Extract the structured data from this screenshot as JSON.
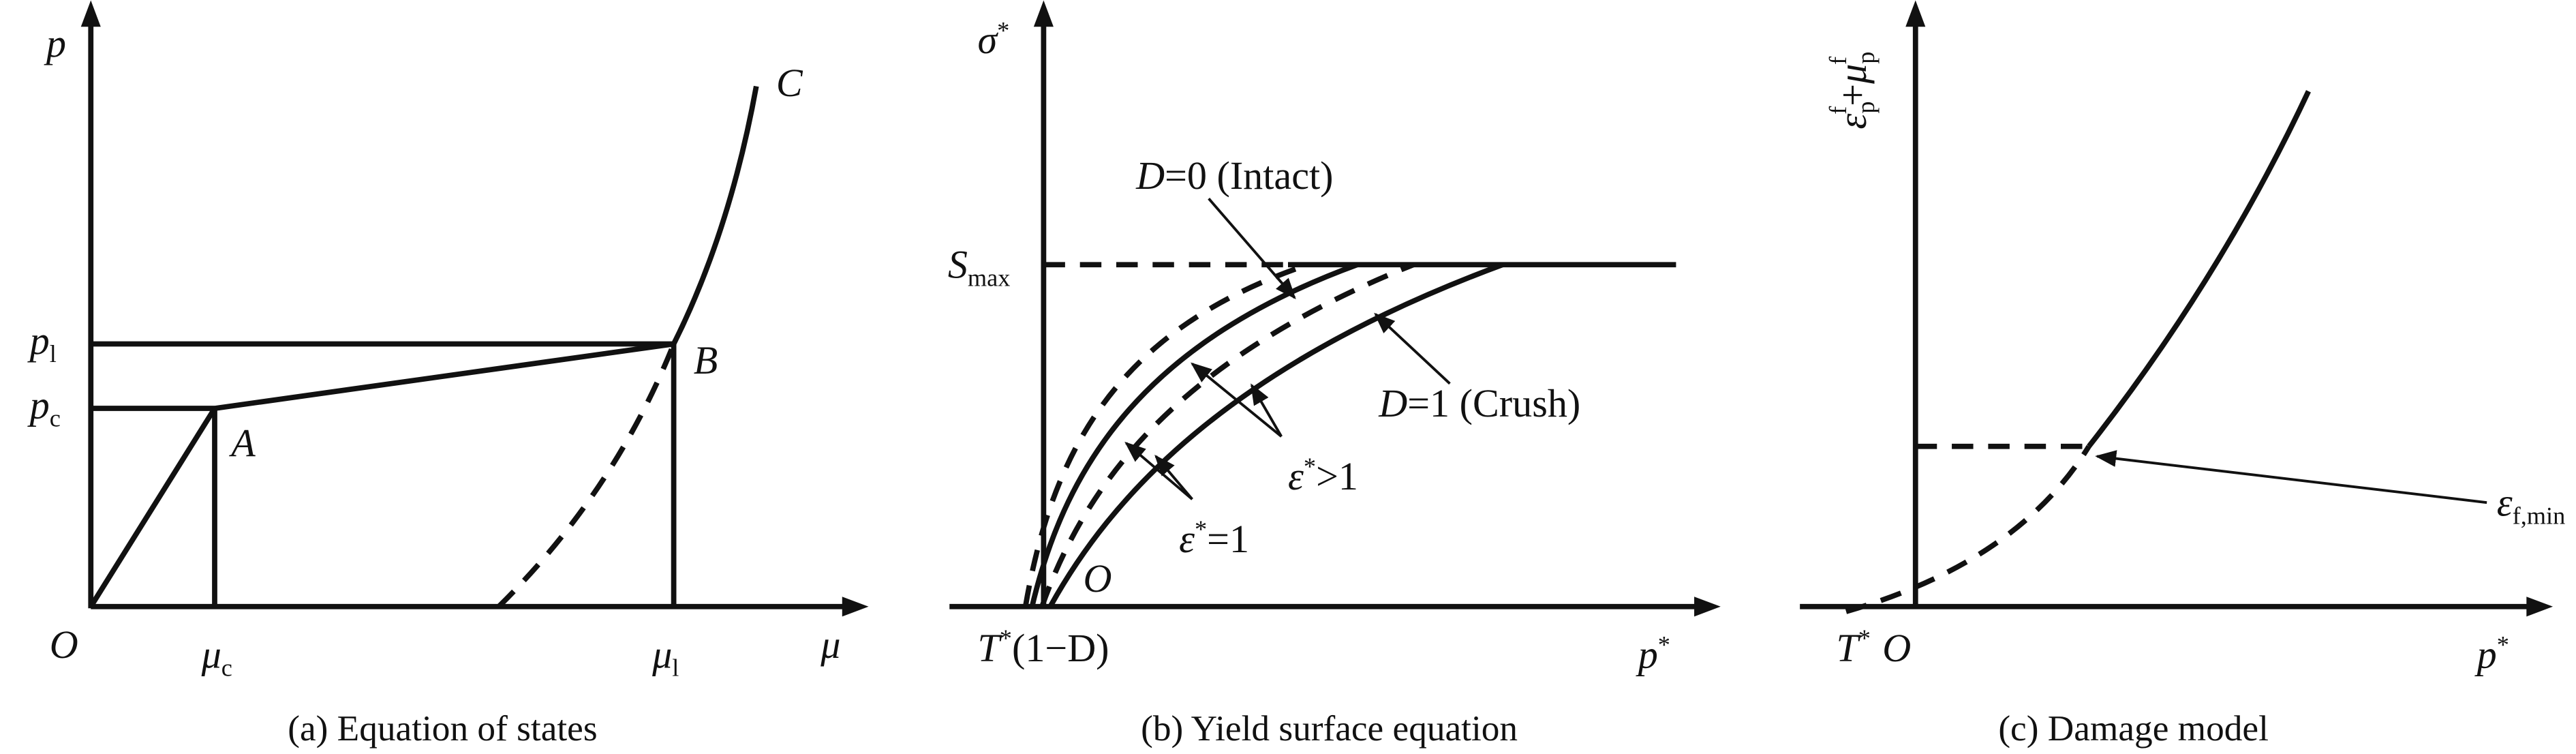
{
  "panels": [
    {
      "caption": "(a) Equation of states",
      "labels": {
        "y_axis": {
          "text": "p"
        },
        "origin": {
          "text": "O"
        },
        "mu_c": {
          "text": "μ",
          "sub": "c"
        },
        "mu_l": {
          "text": "μ",
          "sub": "l"
        },
        "x_axis": {
          "text": "μ"
        },
        "p_l": {
          "text": "p",
          "sub": "l"
        },
        "p_c": {
          "text": "p",
          "sub": "c"
        },
        "A": {
          "text": "A"
        },
        "B": {
          "text": "B"
        },
        "C": {
          "text": "C"
        }
      }
    },
    {
      "caption": "(b) Yield surface equation",
      "labels": {
        "y_axis": {
          "text": "σ",
          "sup": "*"
        },
        "s_max": {
          "text": "S",
          "sub": "max"
        },
        "origin": {
          "text": "O"
        },
        "x_left": {
          "text": "T",
          "sup": "*",
          "tail": "(1−D)"
        },
        "x_axis": {
          "text": "p",
          "sup": "*"
        },
        "intact": {
          "text": "D",
          "tail": "=0 (Intact)"
        },
        "crush": {
          "text": "D",
          "tail": "=1 (Crush)"
        },
        "eps_gt": {
          "text": "ε",
          "sup": "*",
          "tail": ">1"
        },
        "eps_eq": {
          "text": "ε",
          "sup": "*",
          "tail": "=1"
        }
      }
    },
    {
      "caption": "(c) Damage model",
      "labels": {
        "y_axis": {
          "text": "ε",
          "sub": "p",
          "sup": "f",
          "mid": "+",
          "text2": "μ",
          "sub2": "p",
          "sup2": "f"
        },
        "t_star": {
          "text": "T",
          "sup": "*"
        },
        "origin": {
          "text": "O"
        },
        "x_axis": {
          "text": "p",
          "sup": "*"
        },
        "eps_min": {
          "text": "ε",
          "sub": "f,min"
        }
      }
    }
  ]
}
